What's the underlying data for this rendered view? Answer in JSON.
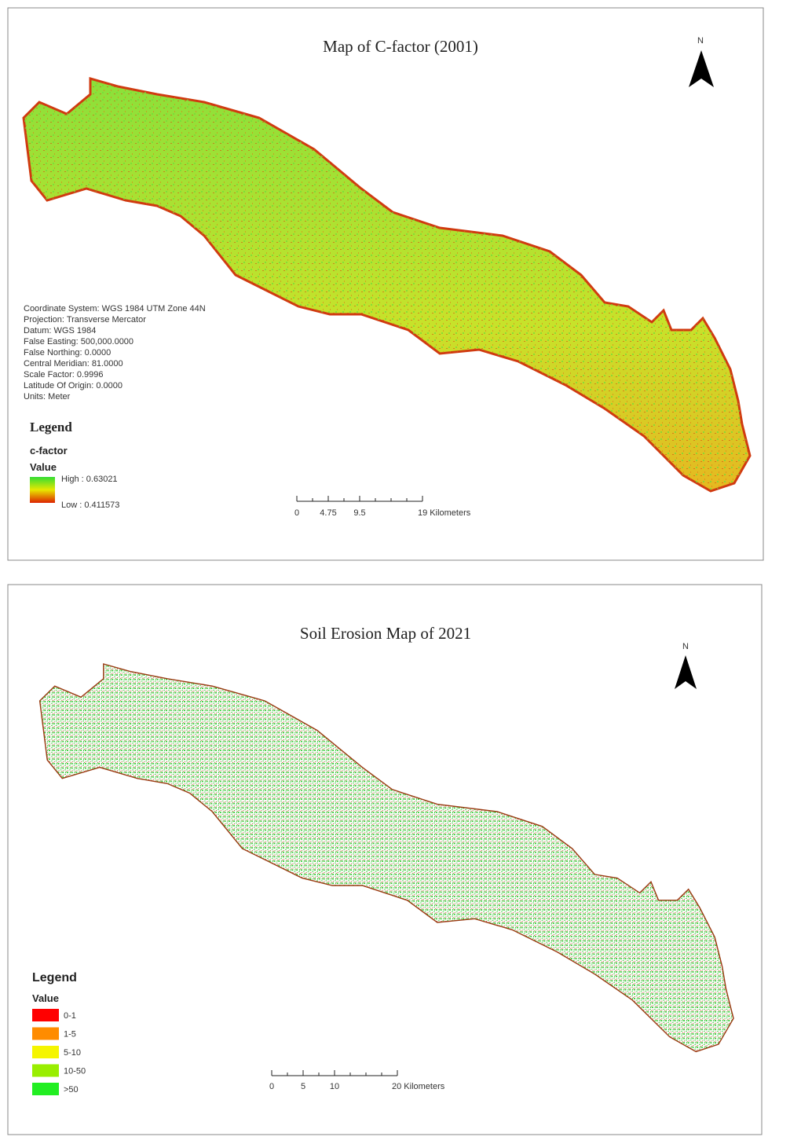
{
  "maps": [
    {
      "title": "Map of C-factor (2001)",
      "north": "N",
      "coordinate_info": [
        "Coordinate System: WGS 1984 UTM Zone 44N",
        "Projection: Transverse Mercator",
        "Datum: WGS 1984",
        "False Easting: 500,000.0000",
        "False Northing: 0.0000",
        "Central Meridian: 81.0000",
        "Scale Factor: 0.9996",
        "Latitude Of Origin: 0.0000",
        "Units: Meter"
      ],
      "legend": {
        "title": "Legend",
        "layer": "c-factor",
        "field": "Value",
        "high": "High : 0.63021",
        "low": "Low : 0.411573",
        "colors": [
          "#33dd33",
          "#e8e800",
          "#dd2200"
        ]
      },
      "scale_labels": [
        "0",
        "4.75",
        "9.5",
        "19 Kilometers"
      ]
    },
    {
      "title": "Soil Erosion Map of 2021",
      "north": "N",
      "legend": {
        "title": "Legend",
        "field": "Value",
        "classes": [
          {
            "label": "0-1",
            "color": "#ff0000"
          },
          {
            "label": "1-5",
            "color": "#ff8c00"
          },
          {
            "label": "5-10",
            "color": "#f5f500"
          },
          {
            "label": "10-50",
            "color": "#99ee00"
          },
          {
            "label": ">50",
            "color": "#22ee22"
          }
        ]
      },
      "scale_labels": [
        "0",
        "5",
        "10",
        "20 Kilometers"
      ]
    }
  ]
}
